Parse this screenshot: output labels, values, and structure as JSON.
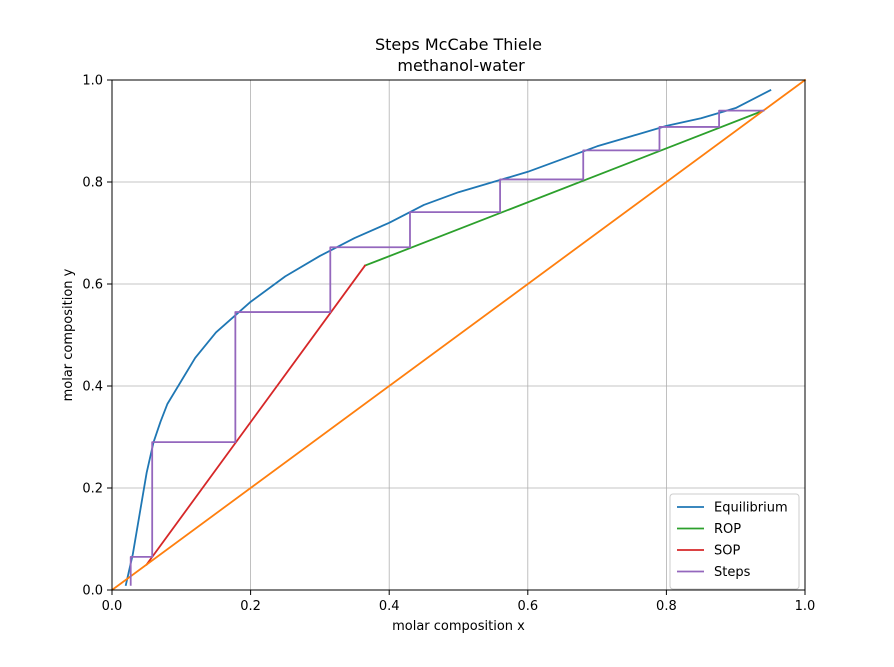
{
  "chart_data": {
    "type": "line",
    "title": "Steps McCabe Thiele",
    "subtitle": " methanol-water",
    "xlabel": "molar composition x",
    "ylabel": "molar composition y",
    "xlim": [
      0,
      1
    ],
    "ylim": [
      0,
      1
    ],
    "xticks": [
      0,
      0.2,
      0.4,
      0.6,
      0.8,
      1.0
    ],
    "yticks": [
      0,
      0.2,
      0.4,
      0.6,
      0.8,
      1.0
    ],
    "xtick_labels": [
      "0.0",
      "0.2",
      "0.4",
      "0.6",
      "0.8",
      "1.0"
    ],
    "ytick_labels": [
      "0.0",
      "0.2",
      "0.4",
      "0.6",
      "0.8",
      "1.0"
    ],
    "grid": true,
    "legend_position": "lower-right",
    "series": [
      {
        "name": "Equilibrium",
        "color": "#1f77b4",
        "in_legend": true,
        "x": [
          0.02,
          0.03,
          0.04,
          0.05,
          0.06,
          0.07,
          0.08,
          0.1,
          0.12,
          0.15,
          0.2,
          0.25,
          0.3,
          0.35,
          0.4,
          0.45,
          0.5,
          0.55,
          0.6,
          0.65,
          0.7,
          0.75,
          0.8,
          0.85,
          0.9,
          0.95
        ],
        "y": [
          0.01,
          0.07,
          0.15,
          0.23,
          0.29,
          0.33,
          0.365,
          0.41,
          0.455,
          0.505,
          0.565,
          0.615,
          0.655,
          0.69,
          0.72,
          0.755,
          0.78,
          0.8,
          0.82,
          0.845,
          0.87,
          0.89,
          0.91,
          0.925,
          0.945,
          0.98
        ]
      },
      {
        "name": "ROP",
        "color": "#2ca02c",
        "in_legend": true,
        "x": [
          0.365,
          0.94
        ],
        "y": [
          0.636,
          0.94
        ]
      },
      {
        "name": "SOP",
        "color": "#d62728",
        "in_legend": true,
        "x": [
          0.05,
          0.365
        ],
        "y": [
          0.05,
          0.636
        ]
      },
      {
        "name": "",
        "color": "#ff7f0e",
        "in_legend": false,
        "x": [
          0,
          1
        ],
        "y": [
          0,
          1
        ]
      },
      {
        "name": "Steps",
        "color": "#9467bd",
        "in_legend": true,
        "x": [
          0.94,
          0.876,
          0.876,
          0.79,
          0.79,
          0.68,
          0.68,
          0.56,
          0.56,
          0.43,
          0.43,
          0.315,
          0.315,
          0.178,
          0.178,
          0.058,
          0.058,
          0.027,
          0.027
        ],
        "y": [
          0.94,
          0.94,
          0.908,
          0.908,
          0.862,
          0.862,
          0.805,
          0.805,
          0.741,
          0.741,
          0.672,
          0.672,
          0.545,
          0.545,
          0.29,
          0.29,
          0.065,
          0.065,
          0.01
        ]
      }
    ]
  }
}
